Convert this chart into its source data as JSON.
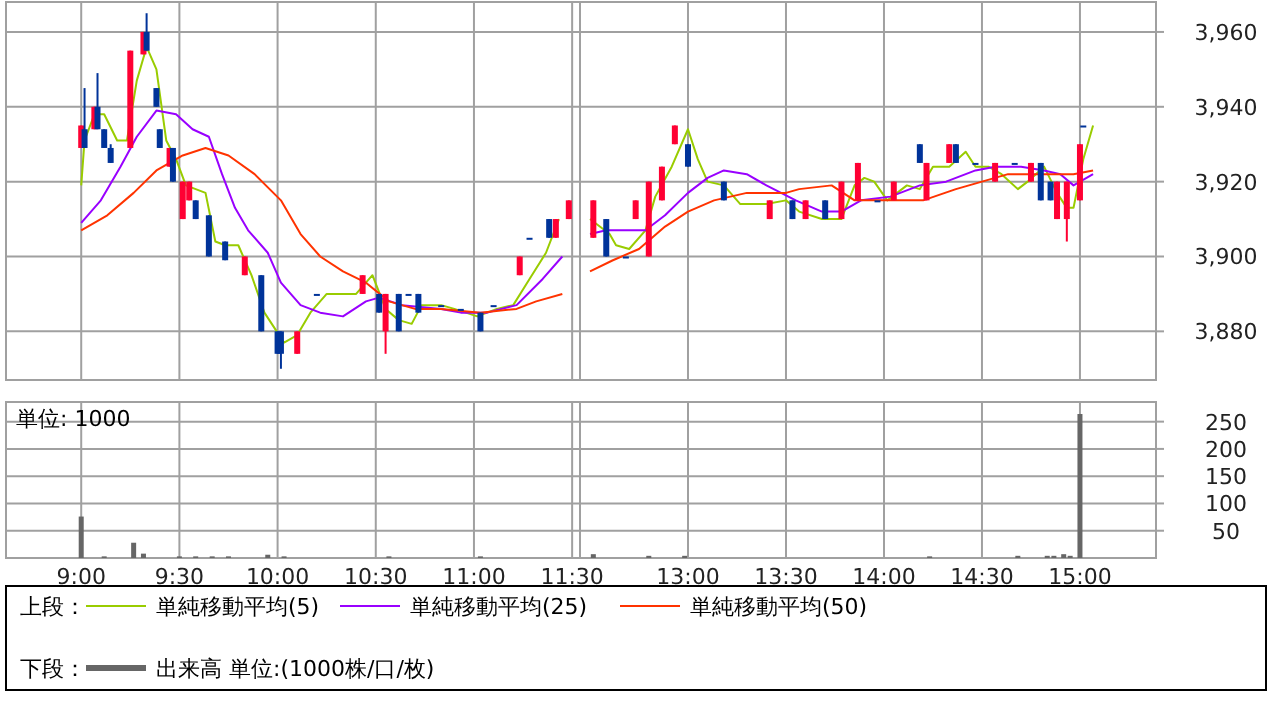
{
  "chart_data": [
    {
      "type": "candlestick",
      "legend_title": "上段：",
      "legend": "bottom",
      "grid": true,
      "tick_labels": false,
      "x": [
        9,
        9.017,
        9.067,
        9.083,
        9.117,
        9.15,
        9.25,
        9.317,
        9.333,
        9.383,
        9.4,
        9.45,
        9.467,
        9.517,
        9.55,
        9.583,
        9.65,
        9.733,
        9.833,
        9.917,
        10,
        10.017,
        10.1,
        10.2,
        10.433,
        10.517,
        10.55,
        10.617,
        10.667,
        10.717,
        10.833,
        10.933,
        11.033,
        11.1,
        11.233,
        11.283,
        11.383,
        11.417,
        11.483
      ],
      "ohlc": [
        [
          3929,
          3935,
          3929,
          3935
        ],
        [
          3934,
          3945,
          3929,
          3929
        ],
        [
          3934,
          3940,
          3934,
          3940
        ],
        [
          3940,
          3949,
          3934,
          3934
        ],
        [
          3934,
          3934,
          3929,
          3929
        ],
        [
          3929,
          3930,
          3925,
          3925
        ],
        [
          3929,
          3955,
          3929,
          3955
        ],
        [
          3954,
          3960,
          3954,
          3960
        ],
        [
          3960,
          3965,
          3955,
          3955
        ],
        [
          3945,
          3945,
          3940,
          3940
        ],
        [
          3934,
          3934,
          3929,
          3929
        ],
        [
          3924,
          3929,
          3924,
          3929
        ],
        [
          3929,
          3929,
          3920,
          3920
        ],
        [
          3910,
          3920,
          3910,
          3920
        ],
        [
          3915,
          3920,
          3915,
          3920
        ],
        [
          3915,
          3915,
          3910,
          3910
        ],
        [
          3911,
          3911,
          3900,
          3900
        ],
        [
          3904,
          3904,
          3899,
          3899
        ],
        [
          3895,
          3900,
          3895,
          3900
        ],
        [
          3895,
          3895,
          3880,
          3880
        ],
        [
          3880,
          3880,
          3874,
          3874
        ],
        [
          3880,
          3880,
          3870,
          3874
        ],
        [
          3874,
          3880,
          3874,
          3880
        ],
        [
          3890,
          3890,
          3890,
          3890
        ],
        [
          3890,
          3895,
          3890,
          3895
        ],
        [
          3890,
          3890,
          3885,
          3885
        ],
        [
          3880,
          3890,
          3874,
          3890
        ],
        [
          3890,
          3890,
          3880,
          3880
        ],
        [
          3890,
          3890,
          3890,
          3890
        ],
        [
          3890,
          3890,
          3885,
          3885
        ],
        [
          3887,
          3887,
          3887,
          3887
        ],
        [
          3886,
          3886,
          3886,
          3886
        ],
        [
          3885,
          3885,
          3880,
          3880
        ],
        [
          3887,
          3887,
          3887,
          3887
        ],
        [
          3895,
          3900,
          3895,
          3900
        ],
        [
          3905,
          3905,
          3905,
          3905
        ],
        [
          3910,
          3910,
          3905,
          3905
        ],
        [
          3905,
          3910,
          3905,
          3910
        ],
        [
          3910,
          3915,
          3910,
          3915
        ]
      ],
      "colors": [
        "#ff0033",
        "#003399",
        "#ff0033",
        "#003399",
        "#003399",
        "#003399",
        "#ff0033",
        "#ff0033",
        "#003399",
        "#003399",
        "#003399",
        "#ff0033",
        "#003399",
        "#ff0033",
        "#ff0033",
        "#003399",
        "#003399",
        "#003399",
        "#ff0033",
        "#003399",
        "#003399",
        "#003399",
        "#ff0033",
        "#003399",
        "#ff0033",
        "#003399",
        "#ff0033",
        "#003399",
        "#003399",
        "#003399",
        "#003399",
        "#003399",
        "#003399",
        "#003399",
        "#ff0033",
        "#003399",
        "#003399",
        "#ff0033",
        "#ff0033"
      ],
      "series": [
        {
          "type": "line",
          "name": "単純移動平均(5)",
          "color": "#99cc00",
          "x": [
            9,
            9.017,
            9.067,
            9.117,
            9.183,
            9.233,
            9.283,
            9.333,
            9.383,
            9.433,
            9.483,
            9.533,
            9.633,
            9.683,
            9.733,
            9.8,
            9.867,
            9.933,
            10.033,
            10.1,
            10.167,
            10.25,
            10.4,
            10.483,
            10.55,
            10.617,
            10.683,
            10.733,
            10.833,
            10.9,
            11.017,
            11.117,
            11.2,
            11.283,
            11.367,
            11.433
          ],
          "values": [
            3919,
            3931,
            3938,
            3938,
            3931,
            3931,
            3947,
            3956,
            3950,
            3931,
            3926,
            3919,
            3917,
            3904,
            3903,
            3903,
            3895,
            3885,
            3877,
            3879,
            3885,
            3890,
            3890,
            3895,
            3886,
            3883,
            3882,
            3887,
            3887,
            3886,
            3884,
            3886,
            3887,
            3894,
            3901,
            3910
          ]
        },
        {
          "type": "line",
          "name": "単純移動平均(25)",
          "color": "#9900ff",
          "x": [
            9,
            9.1,
            9.2,
            9.283,
            9.383,
            9.483,
            9.567,
            9.65,
            9.717,
            9.783,
            9.85,
            9.95,
            10.017,
            10.117,
            10.217,
            10.333,
            10.45,
            10.517,
            10.633,
            10.833,
            10.933,
            11.067,
            11.217,
            11.35,
            11.45
          ],
          "values": [
            3909,
            3915,
            3924,
            3932,
            3939,
            3938,
            3934,
            3932,
            3922,
            3913,
            3907,
            3901,
            3893,
            3887,
            3885,
            3884,
            3888,
            3889,
            3887,
            3886,
            3885,
            3885,
            3887,
            3894,
            3900
          ]
        },
        {
          "type": "line",
          "name": "単純移動平均(50)",
          "color": "#ff3300",
          "x": [
            9,
            9.133,
            9.267,
            9.383,
            9.517,
            9.633,
            9.75,
            9.883,
            10.017,
            10.117,
            10.217,
            10.333,
            10.45,
            10.567,
            10.7,
            10.833,
            11.033,
            11.217,
            11.317,
            11.45
          ],
          "values": [
            3907,
            3911,
            3917,
            3923,
            3927,
            3929,
            3927,
            3922,
            3915,
            3906,
            3900,
            3896,
            3893,
            3888,
            3886,
            3886,
            3885,
            3886,
            3888,
            3890
          ]
        }
      ],
      "xlim": [
        8.617,
        11.54
      ],
      "xticks": [
        9,
        9.5,
        10,
        10.5,
        11,
        11.5
      ],
      "ylim": [
        3867,
        3968
      ],
      "yticks": [
        3880,
        3900,
        3920,
        3940,
        3960
      ]
    },
    {
      "type": "candlestick",
      "grid": true,
      "tick_labels": "y",
      "x": [
        12.517,
        12.583,
        12.683,
        12.733,
        12.8,
        12.867,
        12.933,
        13,
        13.183,
        13.417,
        13.533,
        13.6,
        13.7,
        13.783,
        13.867,
        13.967,
        14.05,
        14.183,
        14.217,
        14.333,
        14.367,
        14.467,
        14.567,
        14.667,
        14.75,
        14.8,
        14.85,
        14.883,
        14.933,
        15,
        15.017
      ],
      "ohlc": [
        [
          3905,
          3915,
          3905,
          3915
        ],
        [
          3910,
          3910,
          3900,
          3900
        ],
        [
          3900,
          3900,
          3900,
          3900
        ],
        [
          3910,
          3915,
          3910,
          3915
        ],
        [
          3900,
          3920,
          3900,
          3920
        ],
        [
          3915,
          3924,
          3915,
          3924
        ],
        [
          3930,
          3935,
          3930,
          3935
        ],
        [
          3930,
          3930,
          3924,
          3924
        ],
        [
          3920,
          3920,
          3915,
          3915
        ],
        [
          3910,
          3915,
          3910,
          3915
        ],
        [
          3915,
          3915,
          3910,
          3910
        ],
        [
          3910,
          3915,
          3910,
          3915
        ],
        [
          3915,
          3915,
          3910,
          3910
        ],
        [
          3910,
          3920,
          3910,
          3920
        ],
        [
          3915,
          3925,
          3915,
          3925
        ],
        [
          3915,
          3915,
          3915,
          3915
        ],
        [
          3915,
          3920,
          3915,
          3920
        ],
        [
          3930,
          3930,
          3925,
          3925
        ],
        [
          3915,
          3925,
          3915,
          3925
        ],
        [
          3925,
          3930,
          3925,
          3930
        ],
        [
          3930,
          3930,
          3925,
          3925
        ],
        [
          3925,
          3925,
          3925,
          3925
        ],
        [
          3920,
          3925,
          3920,
          3925
        ],
        [
          3925,
          3925,
          3925,
          3925
        ],
        [
          3920,
          3925,
          3920,
          3925
        ],
        [
          3925,
          3925,
          3915,
          3915
        ],
        [
          3920,
          3920,
          3915,
          3915
        ],
        [
          3910,
          3920,
          3910,
          3920
        ],
        [
          3910,
          3920,
          3904,
          3920
        ],
        [
          3915,
          3930,
          3915,
          3930
        ],
        [
          3935,
          3935,
          3935,
          3935
        ]
      ],
      "colors": [
        "#ff0033",
        "#003399",
        "#003399",
        "#ff0033",
        "#ff0033",
        "#ff0033",
        "#ff0033",
        "#003399",
        "#003399",
        "#ff0033",
        "#003399",
        "#ff0033",
        "#003399",
        "#ff0033",
        "#ff0033",
        "#003399",
        "#ff0033",
        "#003399",
        "#ff0033",
        "#ff0033",
        "#003399",
        "#003399",
        "#ff0033",
        "#003399",
        "#ff0033",
        "#003399",
        "#003399",
        "#ff0033",
        "#ff0033",
        "#ff0033",
        "#003399"
      ],
      "series": [
        {
          "type": "line",
          "color": "#99cc00",
          "x": [
            12.5,
            12.55,
            12.6,
            12.633,
            12.7,
            12.783,
            12.833,
            12.917,
            13,
            13.05,
            13.1,
            13.183,
            13.267,
            13.4,
            13.5,
            13.567,
            13.683,
            13.783,
            13.85,
            13.9,
            13.95,
            14.017,
            14.117,
            14.183,
            14.25,
            14.333,
            14.417,
            14.467,
            14.533,
            14.6,
            14.683,
            14.733,
            14.817,
            14.883,
            14.933,
            14.967,
            15.017,
            15.067
          ],
          "values": [
            3910,
            3908,
            3906,
            3903,
            3902,
            3907,
            3916,
            3924,
            3934,
            3926,
            3920,
            3919,
            3914,
            3914,
            3915,
            3912,
            3910,
            3910,
            3919,
            3921,
            3920,
            3915,
            3919,
            3918,
            3924,
            3924,
            3928,
            3924,
            3924,
            3922,
            3918,
            3920,
            3924,
            3917,
            3913,
            3913,
            3926,
            3935
          ]
        },
        {
          "type": "line",
          "color": "#9900ff",
          "x": [
            12.5,
            12.583,
            12.783,
            12.883,
            13,
            13.1,
            13.183,
            13.3,
            13.4,
            13.55,
            13.683,
            13.783,
            13.883,
            14.033,
            14.183,
            14.317,
            14.467,
            14.567,
            14.7,
            14.817,
            14.9,
            14.967,
            15.067
          ],
          "values": [
            3906,
            3907,
            3907,
            3911,
            3917,
            3921,
            3923,
            3922,
            3919,
            3915,
            3912,
            3912,
            3915,
            3916,
            3919,
            3920,
            3923,
            3924,
            3924,
            3923,
            3922,
            3919,
            3922
          ]
        },
        {
          "type": "line",
          "color": "#ff3300",
          "x": [
            12.5,
            12.617,
            12.75,
            12.883,
            13,
            13.133,
            13.3,
            13.5,
            13.567,
            13.733,
            13.85,
            14.05,
            14.2,
            14.367,
            14.5,
            14.633,
            14.767,
            14.867,
            14.967,
            15.067
          ],
          "values": [
            3896,
            3899,
            3902,
            3908,
            3912,
            3915,
            3917,
            3917,
            3918,
            3919,
            3915,
            3915,
            3915,
            3918,
            3920,
            3922,
            3922,
            3922,
            3922,
            3923
          ]
        }
      ],
      "xlim": [
        12.449,
        15.388
      ],
      "xticks": [
        13,
        13.5,
        14,
        14.5,
        15
      ],
      "ylim": [
        3867,
        3968
      ],
      "yticks": [
        {
          "value": 3880,
          "label": "3,880"
        },
        {
          "value": 3900,
          "label": "3,900"
        },
        {
          "value": 3920,
          "label": "3,920"
        },
        {
          "value": 3940,
          "label": "3,940"
        },
        {
          "value": 3960,
          "label": "3,960"
        }
      ]
    },
    {
      "type": "bar",
      "legend_title": "下段：",
      "legend": "bottom",
      "grid": true,
      "tick_labels": "x",
      "annotations": [
        "単位: 1000"
      ],
      "x": [
        9,
        9.117,
        9.267,
        9.317,
        9.5,
        9.583,
        9.667,
        9.75,
        9.95,
        10.033,
        10.567,
        11.033
      ],
      "series": [
        {
          "name": "出来高 単位:(1000株/口/枚)",
          "color": "#666666",
          "values": [
            76,
            3,
            28,
            8,
            3,
            3,
            3,
            3,
            6,
            3,
            3,
            3
          ]
        }
      ],
      "xlim": [
        8.617,
        11.54
      ],
      "xticks": [
        {
          "value": 9,
          "label": "9:00"
        },
        {
          "value": 9.5,
          "label": "9:30"
        },
        {
          "value": 10,
          "label": "10:00"
        },
        {
          "value": 10.5,
          "label": "10:30"
        },
        {
          "value": 11,
          "label": "11:00"
        },
        {
          "value": 11.5,
          "label": "11:30"
        }
      ],
      "ylim": [
        0,
        286
      ],
      "yticks": [
        50,
        100,
        150,
        200,
        250
      ]
    },
    {
      "type": "bar",
      "grid": true,
      "x": [
        12.517,
        12.8,
        12.983,
        14.233,
        14.683,
        14.833,
        14.867,
        14.917,
        14.95,
        15
      ],
      "series": [
        {
          "color": "#666666",
          "values": [
            7,
            4,
            4,
            3,
            4,
            4,
            4,
            7,
            4,
            264
          ]
        }
      ],
      "xlim": [
        12.449,
        15.388
      ],
      "xticks": [
        {
          "value": 13,
          "label": "13:00"
        },
        {
          "value": 13.5,
          "label": "13:30"
        },
        {
          "value": 14,
          "label": "14:00"
        },
        {
          "value": 14.5,
          "label": "14:30"
        },
        {
          "value": 15,
          "label": "15:00"
        }
      ],
      "ylim": [
        0,
        286
      ],
      "yticks": [
        50,
        100,
        150,
        200,
        250
      ]
    }
  ]
}
